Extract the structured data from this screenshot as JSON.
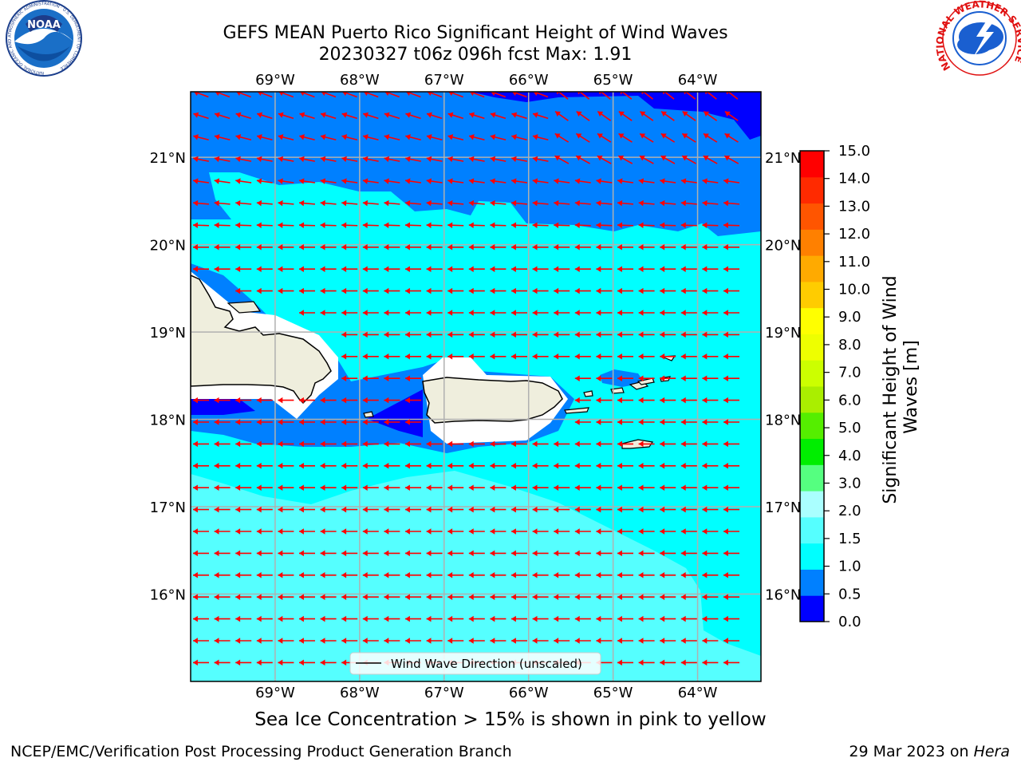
{
  "title": {
    "line1": "GEFS MEAN Puerto Rico Significant Height of Wind Waves",
    "line2": "20230327 t06z 096h fcst   Max: 1.91"
  },
  "map": {
    "lon_labels": [
      "69°W",
      "68°W",
      "67°W",
      "66°W",
      "65°W",
      "64°W"
    ],
    "lat_labels": [
      "21°N",
      "20°N",
      "19°N",
      "18°N",
      "17°N",
      "16°N"
    ],
    "lon_values": [
      -69,
      -68,
      -67,
      -66,
      -65,
      -64
    ],
    "lat_values": [
      21,
      20,
      19,
      18,
      17,
      16
    ],
    "extent": {
      "lon": [
        -70.0,
        -63.25
      ],
      "lat": [
        15.0,
        21.75
      ]
    },
    "land_color": "#efeedd",
    "arrow_color": "#ff0000",
    "gridline_color": "#b0b0b0"
  },
  "legend": {
    "label": "Wind Wave Direction (unscaled)"
  },
  "colorbar": {
    "label": "Significant Height of Wind Waves [m]",
    "ticks": [
      "15.0",
      "14.0",
      "13.0",
      "12.0",
      "11.0",
      "10.0",
      "9.0",
      "8.0",
      "7.0",
      "6.0",
      "5.0",
      "4.0",
      "3.0",
      "2.0",
      "1.5",
      "1.0",
      "0.5",
      "0.0"
    ],
    "colors": [
      "#0000ff",
      "#0080ff",
      "#00ffff",
      "#55ffff",
      "#aaffff",
      "#55ff80",
      "#00ee00",
      "#55ee00",
      "#aaee00",
      "#ccff00",
      "#eeff00",
      "#ffff00",
      "#ffcc00",
      "#ffaa00",
      "#ff8000",
      "#ff5500",
      "#ff2a00",
      "#ff0000"
    ]
  },
  "footer": {
    "ice_note": "Sea Ice Concentration > 15% is shown in pink to yellow",
    "credit_left": "NCEP/EMC/Verification Post Processing Product Generation Branch",
    "credit_date": "29 Mar 2023 on ",
    "credit_host": "Hera"
  },
  "logos": {
    "noaa_text": "NOAA",
    "noaa_ring": "NATIONAL OCEANIC AND ATMOSPHERIC ADMINISTRATION · U.S. DEPARTMENT OF COMMERCE",
    "nws_ring": "NATIONAL WEATHER SERVICE"
  }
}
